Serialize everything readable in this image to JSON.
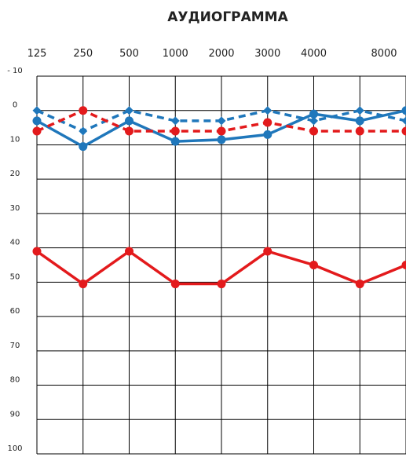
{
  "chart_data": {
    "type": "line",
    "title": "АУДИОГРАММА",
    "x_categories": [
      "125",
      "250",
      "500",
      "1000",
      "2000",
      "3000",
      "4000",
      "",
      "8000"
    ],
    "x_tick_labels": [
      "125",
      "250",
      "500",
      "1000",
      "2000",
      "3000",
      "4000",
      "8000"
    ],
    "y_tick_labels": [
      "- 10",
      "0",
      "10",
      "20",
      "30",
      "40",
      "50",
      "60",
      "70",
      "80",
      "90",
      "100"
    ],
    "ylim": [
      -10,
      100
    ],
    "y_inverted": true,
    "grid": true,
    "series": [
      {
        "color": "#1f77bb",
        "dashed": false,
        "marker": "circle",
        "values": [
          3,
          10.5,
          3,
          9,
          8.5,
          7,
          1,
          3,
          0
        ]
      },
      {
        "color": "#1f77bb",
        "dashed": true,
        "marker": "diamond",
        "values": [
          0,
          6,
          0,
          3,
          3,
          0,
          3,
          0,
          3
        ]
      },
      {
        "color": "#e31a1c",
        "dashed": true,
        "marker": "circle",
        "values": [
          6,
          0,
          6,
          6,
          6,
          3.5,
          6,
          6,
          6
        ]
      },
      {
        "color": "#e31a1c",
        "dashed": false,
        "marker": "circle",
        "values": [
          41,
          50.5,
          41,
          50.5,
          50.5,
          41,
          45,
          50.5,
          45
        ]
      }
    ]
  }
}
